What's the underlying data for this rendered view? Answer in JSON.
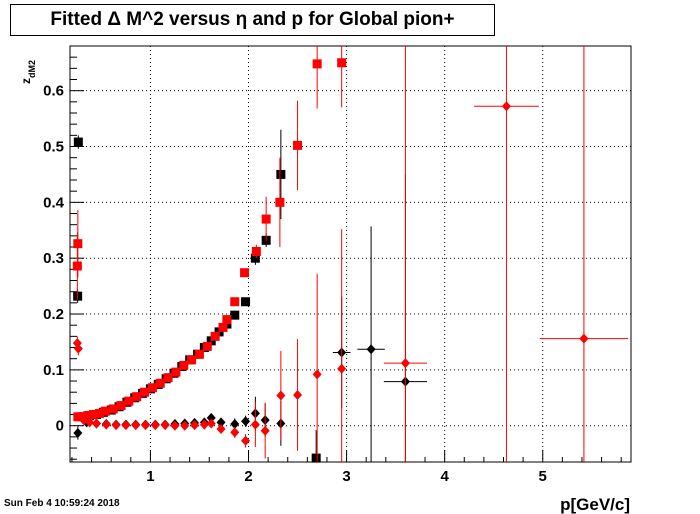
{
  "title": "Fitted Δ M^2 versus η and p for Global pion+",
  "timestamp": "Sun Feb  4 10:59:24 2018",
  "chart_data": {
    "type": "scatter",
    "title": "Fitted Δ M^2 versus η and p for Global pion+",
    "xlabel": "p[GeV/c]",
    "ylabel": "z_dM2",
    "xlim": [
      0.18,
      5.9
    ],
    "ylim": [
      -0.065,
      0.68
    ],
    "xticks": [
      1,
      2,
      3,
      4,
      5
    ],
    "yticks": [
      0,
      0.1,
      0.2,
      0.3,
      0.4,
      0.5,
      0.6
    ],
    "grid": true,
    "series": [
      {
        "color": "#000000",
        "marker": "square",
        "points": [
          {
            "x": 0.265,
            "y": 0.508,
            "ey": 0.012
          },
          {
            "x": 0.258,
            "y": 0.232,
            "ey": 0.012
          },
          {
            "x": 0.32,
            "y": 0.016,
            "ey": 0.004
          },
          {
            "x": 0.38,
            "y": 0.018,
            "ey": 0.004
          },
          {
            "x": 0.45,
            "y": 0.02,
            "ey": 0.004
          },
          {
            "x": 0.52,
            "y": 0.024,
            "ey": 0.004
          },
          {
            "x": 0.6,
            "y": 0.028,
            "ey": 0.004
          },
          {
            "x": 0.68,
            "y": 0.034,
            "ey": 0.004
          },
          {
            "x": 0.76,
            "y": 0.042,
            "ey": 0.004
          },
          {
            "x": 0.84,
            "y": 0.05,
            "ey": 0.004
          },
          {
            "x": 0.92,
            "y": 0.058,
            "ey": 0.004
          },
          {
            "x": 1.0,
            "y": 0.066,
            "ey": 0.004
          },
          {
            "x": 1.08,
            "y": 0.074,
            "ey": 0.004
          },
          {
            "x": 1.16,
            "y": 0.084,
            "ey": 0.004
          },
          {
            "x": 1.24,
            "y": 0.094,
            "ey": 0.004
          },
          {
            "x": 1.32,
            "y": 0.106,
            "ey": 0.005
          },
          {
            "x": 1.4,
            "y": 0.118,
            "ey": 0.005
          },
          {
            "x": 1.48,
            "y": 0.128,
            "ey": 0.005
          },
          {
            "x": 1.55,
            "y": 0.14,
            "ey": 0.005
          },
          {
            "x": 1.62,
            "y": 0.152,
            "ey": 0.005
          },
          {
            "x": 1.7,
            "y": 0.168,
            "ey": 0.005
          },
          {
            "x": 1.78,
            "y": 0.182,
            "ey": 0.005
          },
          {
            "x": 1.86,
            "y": 0.198,
            "ey": 0.006
          },
          {
            "x": 1.97,
            "y": 0.222,
            "ey": 0.006
          },
          {
            "x": 2.07,
            "y": 0.3,
            "ey": 0.012
          },
          {
            "x": 2.18,
            "y": 0.332,
            "ey": 0.012
          },
          {
            "x": 2.33,
            "y": 0.45,
            "ey": 0.08
          },
          {
            "x": 2.69,
            "y": -0.058,
            "ey": 0.05
          }
        ]
      },
      {
        "color": "#ff0000",
        "marker": "square",
        "points": [
          {
            "x": 0.26,
            "y": 0.326,
            "ey": 0.06
          },
          {
            "x": 0.255,
            "y": 0.286,
            "ey": 0.06
          },
          {
            "x": 0.26,
            "y": 0.016,
            "ey": 0.004
          },
          {
            "x": 0.3,
            "y": 0.016,
            "ey": 0.004
          },
          {
            "x": 0.36,
            "y": 0.018,
            "ey": 0.004
          },
          {
            "x": 0.42,
            "y": 0.02,
            "ey": 0.004
          },
          {
            "x": 0.48,
            "y": 0.022,
            "ey": 0.004
          },
          {
            "x": 0.54,
            "y": 0.026,
            "ey": 0.004
          },
          {
            "x": 0.62,
            "y": 0.03,
            "ey": 0.004
          },
          {
            "x": 0.7,
            "y": 0.036,
            "ey": 0.004
          },
          {
            "x": 0.78,
            "y": 0.044,
            "ey": 0.004
          },
          {
            "x": 0.86,
            "y": 0.052,
            "ey": 0.004
          },
          {
            "x": 0.94,
            "y": 0.06,
            "ey": 0.004
          },
          {
            "x": 1.02,
            "y": 0.068,
            "ey": 0.004
          },
          {
            "x": 1.1,
            "y": 0.076,
            "ey": 0.004
          },
          {
            "x": 1.18,
            "y": 0.086,
            "ey": 0.004
          },
          {
            "x": 1.26,
            "y": 0.096,
            "ey": 0.004
          },
          {
            "x": 1.34,
            "y": 0.108,
            "ey": 0.005
          },
          {
            "x": 1.42,
            "y": 0.118,
            "ey": 0.005
          },
          {
            "x": 1.5,
            "y": 0.128,
            "ey": 0.005
          },
          {
            "x": 1.58,
            "y": 0.142,
            "ey": 0.005
          },
          {
            "x": 1.66,
            "y": 0.16,
            "ey": 0.005
          },
          {
            "x": 1.74,
            "y": 0.176,
            "ey": 0.005
          },
          {
            "x": 1.78,
            "y": 0.19,
            "ey": 0.005
          },
          {
            "x": 1.86,
            "y": 0.222,
            "ey": 0.006
          },
          {
            "x": 1.96,
            "y": 0.274,
            "ey": 0.006
          },
          {
            "x": 2.08,
            "y": 0.312,
            "ey": 0.012
          },
          {
            "x": 2.18,
            "y": 0.37,
            "ey": 0.04
          },
          {
            "x": 2.32,
            "y": 0.4,
            "ey": 0.08
          },
          {
            "x": 2.5,
            "y": 0.502,
            "ey": 0.08
          },
          {
            "x": 2.7,
            "y": 0.648,
            "ey": 0.08
          },
          {
            "x": 2.95,
            "y": 0.65,
            "ey": 0.08
          }
        ]
      },
      {
        "color": "#000000",
        "marker": "diamond",
        "points": [
          {
            "x": 0.26,
            "y": -0.013,
            "ey": 0.012
          },
          {
            "x": 0.35,
            "y": 0.006,
            "ey": 0.003
          },
          {
            "x": 0.45,
            "y": 0.004,
            "ey": 0.003
          },
          {
            "x": 0.55,
            "y": 0.003,
            "ey": 0.003
          },
          {
            "x": 0.65,
            "y": 0.002,
            "ey": 0.003
          },
          {
            "x": 0.75,
            "y": 0.002,
            "ey": 0.003
          },
          {
            "x": 0.85,
            "y": 0.002,
            "ey": 0.003
          },
          {
            "x": 0.95,
            "y": 0.002,
            "ey": 0.003
          },
          {
            "x": 1.05,
            "y": 0.002,
            "ey": 0.003
          },
          {
            "x": 1.15,
            "y": 0.002,
            "ey": 0.003
          },
          {
            "x": 1.25,
            "y": 0.003,
            "ey": 0.003
          },
          {
            "x": 1.35,
            "y": 0.004,
            "ey": 0.003
          },
          {
            "x": 1.45,
            "y": 0.005,
            "ey": 0.003
          },
          {
            "x": 1.55,
            "y": 0.006,
            "ey": 0.004
          },
          {
            "x": 1.62,
            "y": 0.014,
            "ey": 0.006
          },
          {
            "x": 1.72,
            "y": 0.006,
            "ey": 0.006
          },
          {
            "x": 1.86,
            "y": 0.003,
            "ey": 0.01
          },
          {
            "x": 1.97,
            "y": 0.008,
            "ey": 0.01
          },
          {
            "x": 2.07,
            "y": 0.022,
            "ey": 0.03
          },
          {
            "x": 2.17,
            "y": 0.01,
            "ey": 0.03
          },
          {
            "x": 2.33,
            "y": 0.004,
            "ey": 0.04
          },
          {
            "x": 2.95,
            "y": 0.131,
            "ey": 0.1,
            "ex": 0.09
          },
          {
            "x": 3.25,
            "y": 0.137,
            "ey": 0.22,
            "ex": 0.14
          },
          {
            "x": 3.6,
            "y": 0.079,
            "ey": 0.37,
            "ex": 0.22
          }
        ]
      },
      {
        "color": "#ff0000",
        "marker": "diamond",
        "points": [
          {
            "x": 0.255,
            "y": 0.148,
            "ey": 0.012
          },
          {
            "x": 0.265,
            "y": 0.138,
            "ey": 0.012
          },
          {
            "x": 0.32,
            "y": 0.01,
            "ey": 0.003
          },
          {
            "x": 0.38,
            "y": 0.006,
            "ey": 0.003
          },
          {
            "x": 0.45,
            "y": 0.004,
            "ey": 0.003
          },
          {
            "x": 0.55,
            "y": 0.002,
            "ey": 0.003
          },
          {
            "x": 0.65,
            "y": 0.001,
            "ey": 0.003
          },
          {
            "x": 0.75,
            "y": 0.001,
            "ey": 0.003
          },
          {
            "x": 0.85,
            "y": 0.001,
            "ey": 0.003
          },
          {
            "x": 0.95,
            "y": 0.001,
            "ey": 0.003
          },
          {
            "x": 1.05,
            "y": 0.001,
            "ey": 0.003
          },
          {
            "x": 1.15,
            "y": 0.001,
            "ey": 0.003
          },
          {
            "x": 1.25,
            "y": 0.0,
            "ey": 0.003
          },
          {
            "x": 1.35,
            "y": 0.0,
            "ey": 0.003
          },
          {
            "x": 1.45,
            "y": 0.001,
            "ey": 0.003
          },
          {
            "x": 1.55,
            "y": 0.002,
            "ey": 0.004
          },
          {
            "x": 1.62,
            "y": 0.004,
            "ey": 0.005
          },
          {
            "x": 1.72,
            "y": -0.006,
            "ey": 0.006
          },
          {
            "x": 1.86,
            "y": -0.012,
            "ey": 0.01
          },
          {
            "x": 1.97,
            "y": -0.027,
            "ey": 0.012
          },
          {
            "x": 2.07,
            "y": 0.002,
            "ey": 0.04
          },
          {
            "x": 2.17,
            "y": -0.009,
            "ey": 0.05
          },
          {
            "x": 2.33,
            "y": 0.054,
            "ey": 0.08
          },
          {
            "x": 2.5,
            "y": 0.055,
            "ey": 0.1
          },
          {
            "x": 2.7,
            "y": 0.092,
            "ey": 0.18
          },
          {
            "x": 2.95,
            "y": 0.102,
            "ey": 0.25
          },
          {
            "x": 3.6,
            "y": 0.112,
            "ey": 0.8,
            "ex": 0.22
          },
          {
            "x": 4.63,
            "y": 0.572,
            "ey": 0.8,
            "ex": 0.33
          },
          {
            "x": 5.42,
            "y": 0.156,
            "ey": 0.8,
            "ex": 0.45
          }
        ]
      }
    ]
  }
}
